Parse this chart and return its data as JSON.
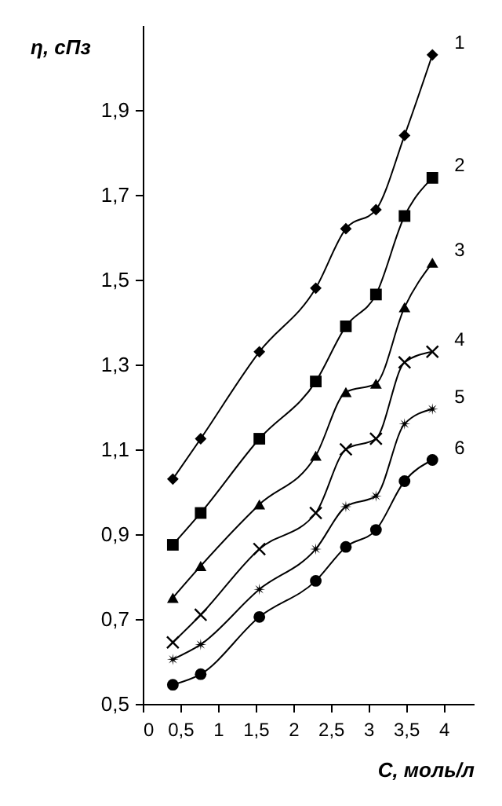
{
  "chart_data": {
    "type": "line",
    "xlabel": "С, моль/л",
    "ylabel": "η, сПз",
    "xlim": [
      0,
      4.4
    ],
    "ylim": [
      0.5,
      2.1
    ],
    "xticks": [
      0,
      {
        "value": 0.5,
        "label": "0,5"
      },
      1,
      {
        "value": 1.5,
        "label": "1,5"
      },
      2,
      {
        "value": 2.5,
        "label": "2,5"
      },
      3,
      {
        "value": 3.5,
        "label": "3,5"
      },
      4
    ],
    "yticks": [
      {
        "value": 0.5,
        "label": "0,5"
      },
      {
        "value": 0.7,
        "label": "0,7"
      },
      {
        "value": 0.9,
        "label": "0,9"
      },
      {
        "value": 1.1,
        "label": "1,1"
      },
      {
        "value": 1.3,
        "label": "1,3"
      },
      {
        "value": 1.5,
        "label": "1,5"
      },
      {
        "value": 1.7,
        "label": "1,7"
      },
      {
        "value": 1.9,
        "label": "1,9"
      }
    ],
    "x": [
      0.4,
      0.77,
      1.55,
      2.3,
      2.7,
      3.1,
      3.48,
      3.85
    ],
    "grid": false,
    "legend": false,
    "series": [
      {
        "name": "1",
        "color": "#000000",
        "marker": "diamond",
        "values": [
          1.03,
          1.125,
          1.33,
          1.48,
          1.62,
          1.665,
          1.84,
          2.03
        ]
      },
      {
        "name": "2",
        "color": "#000000",
        "marker": "square",
        "values": [
          0.875,
          0.95,
          1.125,
          1.26,
          1.39,
          1.465,
          1.65,
          1.74
        ]
      },
      {
        "name": "3",
        "color": "#000000",
        "marker": "triangle",
        "values": [
          0.75,
          0.825,
          0.97,
          1.085,
          1.235,
          1.255,
          1.435,
          1.54
        ]
      },
      {
        "name": "4",
        "color": "#000000",
        "marker": "cross",
        "values": [
          0.645,
          0.71,
          0.865,
          0.95,
          1.1,
          1.125,
          1.305,
          1.33
        ]
      },
      {
        "name": "5",
        "color": "#000000",
        "marker": "star",
        "values": [
          0.605,
          0.64,
          0.77,
          0.865,
          0.965,
          0.99,
          1.16,
          1.195
        ]
      },
      {
        "name": "6",
        "color": "#000000",
        "marker": "circle",
        "values": [
          0.545,
          0.57,
          0.705,
          0.79,
          0.87,
          0.91,
          1.025,
          1.075
        ]
      }
    ]
  }
}
